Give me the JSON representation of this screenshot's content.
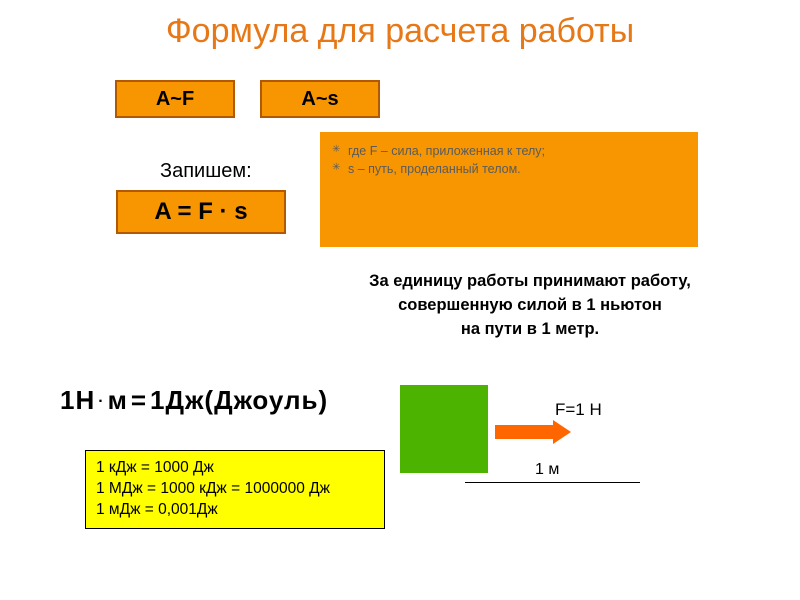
{
  "title": "Формула для расчета работы",
  "title_color": "#E67817",
  "accent_bg": "#F79600",
  "accent_border": "#B25900",
  "accent_text": "#000000",
  "green": "#4CB400",
  "explain_text_color": "#5B5B5B",
  "boxes": {
    "af": "A~F",
    "as": "A~s"
  },
  "write_label": "Запишем:",
  "formula": "A = F · s",
  "explain": {
    "lines": [
      "где  F – сила, приложенная к телу;",
      "s – путь, проделанный телом."
    ]
  },
  "unit_definition": {
    "line1": "За единицу работы принимают работу,",
    "line2": "совершенную силой в 1 ньютон",
    "line3": "на пути в 1 метр."
  },
  "joule_equation": {
    "left": "1Н",
    "mid": "м",
    "right": "1Дж(Джоуль)"
  },
  "conversions": {
    "line1": "1 кДж = 1000 Дж",
    "line2": "1 МДж = 1000 кДж = 1000000 Дж",
    "line3": "1 мДж = 0,001Дж"
  },
  "diagram": {
    "force_label": "F=1 Н",
    "distance_label": "1 м",
    "arrow_color": "#FF6600"
  }
}
